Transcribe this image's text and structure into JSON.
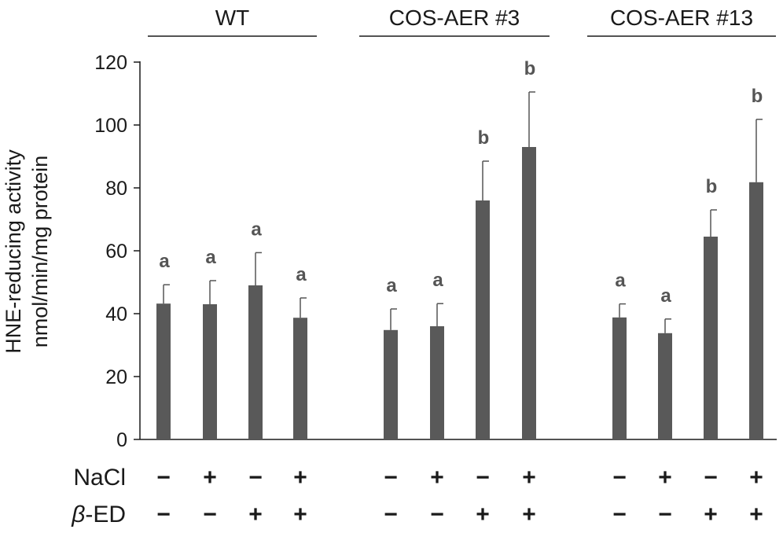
{
  "chart_data": {
    "type": "bar",
    "ylabel_line1": "HNE-reducing activity",
    "ylabel_line2": "nmol/min/mg protein",
    "ylim": [
      0,
      120
    ],
    "yticks": [
      0,
      20,
      40,
      60,
      80,
      100,
      120
    ],
    "bar_color": "#595959",
    "groups": [
      {
        "name": "WT",
        "bars": [
          {
            "value": 43.2,
            "error": 6.0,
            "sig": "a",
            "nacl": "−",
            "bed": "−"
          },
          {
            "value": 43.0,
            "error": 7.5,
            "sig": "a",
            "nacl": "+",
            "bed": "−"
          },
          {
            "value": 49.0,
            "error": 10.4,
            "sig": "a",
            "nacl": "−",
            "bed": "+"
          },
          {
            "value": 38.7,
            "error": 6.3,
            "sig": "a",
            "nacl": "+",
            "bed": "+"
          }
        ]
      },
      {
        "name": "COS-AER #3",
        "bars": [
          {
            "value": 34.8,
            "error": 6.7,
            "sig": "a",
            "nacl": "−",
            "bed": "−"
          },
          {
            "value": 36.0,
            "error": 7.2,
            "sig": "a",
            "nacl": "+",
            "bed": "−"
          },
          {
            "value": 76.0,
            "error": 12.5,
            "sig": "b",
            "nacl": "−",
            "bed": "+"
          },
          {
            "value": 93.0,
            "error": 17.5,
            "sig": "b",
            "nacl": "+",
            "bed": "+"
          }
        ]
      },
      {
        "name": "COS-AER #13",
        "bars": [
          {
            "value": 38.8,
            "error": 4.3,
            "sig": "a",
            "nacl": "−",
            "bed": "−"
          },
          {
            "value": 33.8,
            "error": 4.5,
            "sig": "a",
            "nacl": "+",
            "bed": "−"
          },
          {
            "value": 64.5,
            "error": 8.5,
            "sig": "b",
            "nacl": "−",
            "bed": "+"
          },
          {
            "value": 81.8,
            "error": 20.0,
            "sig": "b",
            "nacl": "+",
            "bed": "+"
          }
        ]
      }
    ],
    "row_labels": {
      "nacl": "NaCl",
      "bed_symbol": "β",
      "bed_suffix": "-ED"
    }
  }
}
